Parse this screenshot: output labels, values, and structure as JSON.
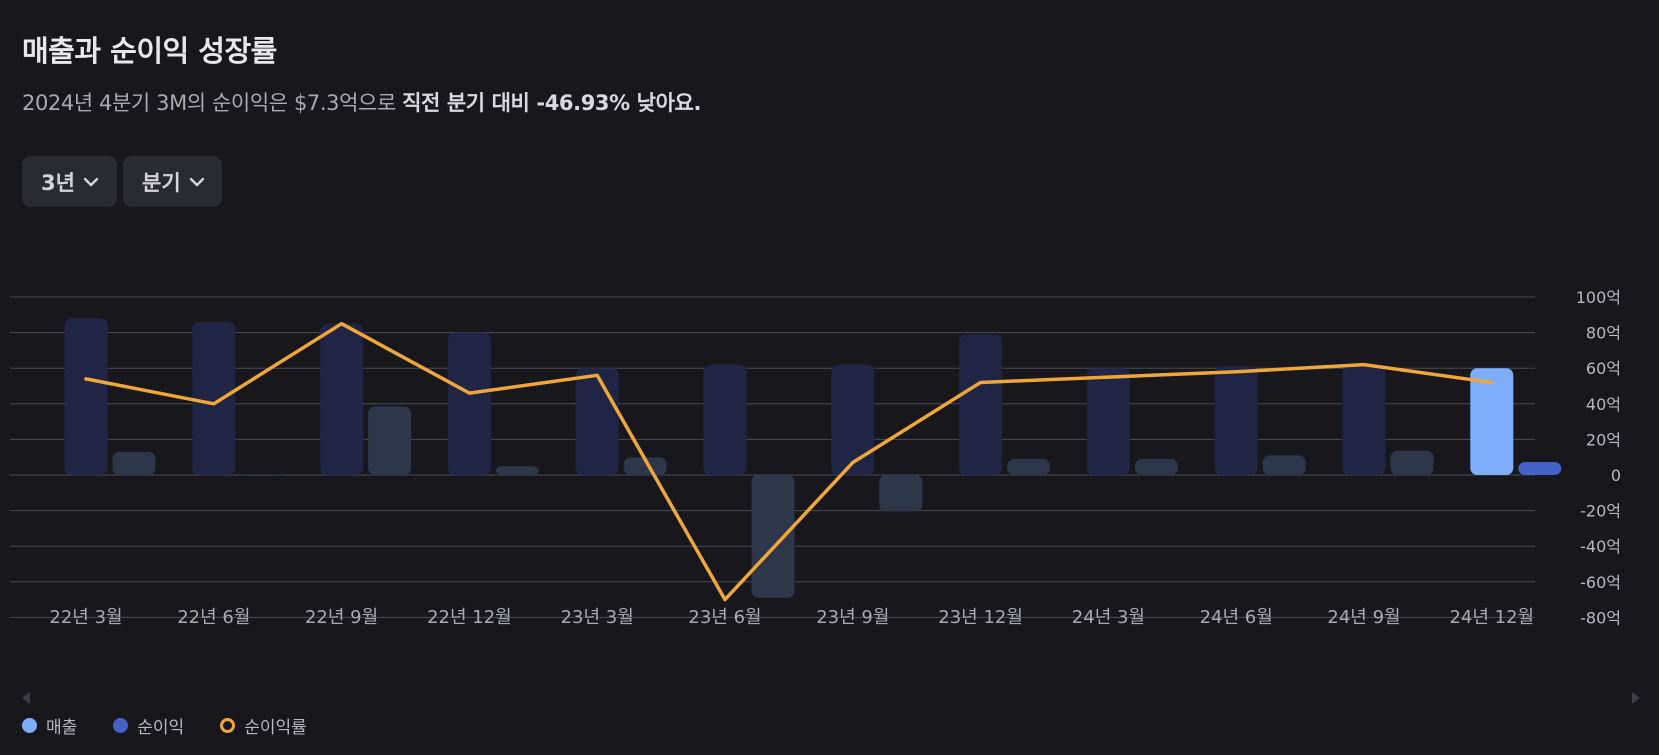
{
  "header": {
    "title": "매출과 순이익 성장률",
    "subtitle_pre": "2024년 4분기 3M의 순이익은 $7.3억으로 ",
    "subtitle_bold": "직전 분기 대비 -46.93% 낮아요."
  },
  "controls": {
    "period_label": "3년",
    "unit_label": "분기"
  },
  "colors": {
    "revenue_dim": "#202546",
    "revenue_highlight": "#7eaefb",
    "profit_dim": "#2d3749",
    "profit_highlight": "#4361c7",
    "margin_line": "#f0a73a",
    "grid": "#4a4b53"
  },
  "chart_data": {
    "type": "bar",
    "title": "매출과 순이익 성장률",
    "categories": [
      "22년 3월",
      "22년 6월",
      "22년 9월",
      "22년 12월",
      "23년 3월",
      "23년 6월",
      "23년 9월",
      "23년 12월",
      "24년 3월",
      "24년 6월",
      "24년 9월",
      "24년 12월"
    ],
    "series": [
      {
        "name": "매출",
        "kind": "bar",
        "unit": "억",
        "values": [
          88,
          86,
          85,
          80,
          60,
          62,
          62,
          79,
          60,
          61,
          61,
          60
        ]
      },
      {
        "name": "순이익",
        "kind": "bar",
        "unit": "억",
        "values": [
          13,
          0.3,
          38.5,
          5,
          10,
          -69,
          -20.5,
          9,
          9,
          11,
          13.7,
          7.3
        ]
      },
      {
        "name": "순이익률",
        "kind": "line",
        "unit": "%",
        "values": [
          54,
          40,
          85,
          46,
          56,
          -70,
          7,
          52,
          55,
          58,
          62,
          52
        ]
      }
    ],
    "highlight_index": 11,
    "y_ticks": [
      100,
      80,
      60,
      40,
      20,
      0,
      -20,
      -40,
      -60,
      -80
    ],
    "y_tick_labels": [
      "100억",
      "80억",
      "60억",
      "40억",
      "20억",
      "0",
      "-20억",
      "-40억",
      "-60억",
      "-80억"
    ],
    "ylim": [
      -80,
      100
    ],
    "legend": [
      "매출",
      "순이익",
      "순이익률"
    ],
    "legend_position": "bottom-left",
    "grid": true
  }
}
